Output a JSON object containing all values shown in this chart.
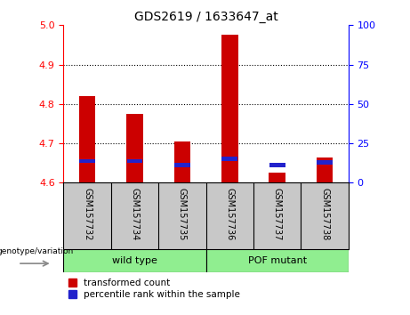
{
  "title": "GDS2619 / 1633647_at",
  "samples": [
    "GSM157732",
    "GSM157734",
    "GSM157735",
    "GSM157736",
    "GSM157737",
    "GSM157738"
  ],
  "red_values": [
    4.82,
    4.775,
    4.705,
    4.975,
    4.625,
    4.665
  ],
  "blue_values": [
    4.655,
    4.655,
    4.645,
    4.66,
    4.645,
    4.652
  ],
  "y_min": 4.6,
  "y_max": 5.0,
  "y_ticks_left": [
    4.6,
    4.7,
    4.8,
    4.9,
    5.0
  ],
  "y_ticks_right": [
    0,
    25,
    50,
    75,
    100
  ],
  "bar_width": 0.35,
  "red_color": "#cc0000",
  "blue_color": "#2222cc",
  "bar_bottom": 4.6,
  "legend_red": "transformed count",
  "legend_blue": "percentile rank within the sample",
  "xlabel_group": "genotype/variation",
  "wt_label": "wild type",
  "pof_label": "POF mutant",
  "group_color": "#90ee90",
  "xtick_bg": "#c8c8c8"
}
